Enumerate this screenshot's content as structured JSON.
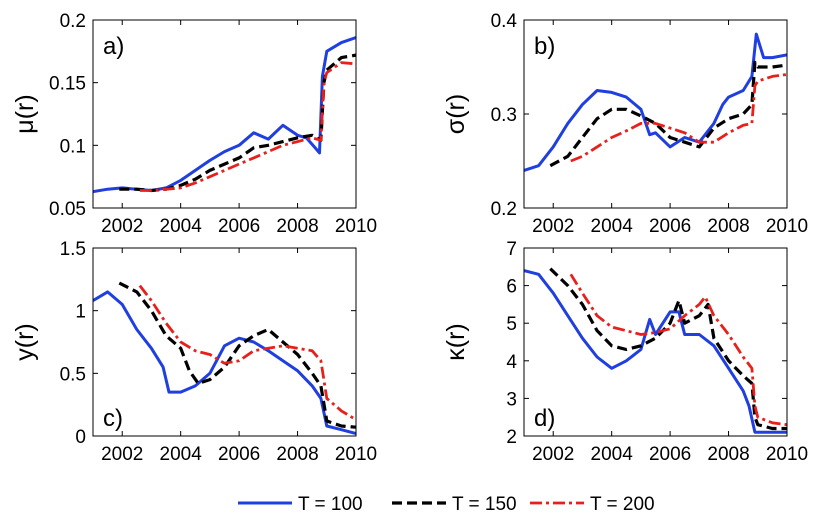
{
  "colors": {
    "T100": "#1f3fe0",
    "T150": "#000000",
    "T200": "#e8201c"
  },
  "legend": [
    {
      "label": "T = 100",
      "style": "solid"
    },
    {
      "label": "T = 150",
      "style": "dashed"
    },
    {
      "label": "T = 200",
      "style": "dashdot"
    }
  ],
  "chart_data": [
    {
      "type": "line",
      "panel": "a)",
      "ylabel": "μ(r)",
      "xlim": [
        2001,
        2010
      ],
      "ylim": [
        0.05,
        0.2
      ],
      "xticks": [
        "2002",
        "2004",
        "2006",
        "2008",
        "2010"
      ],
      "yticks": [
        "0.05",
        "0.1",
        "0.15",
        "0.2"
      ],
      "series": [
        {
          "name": "T = 100",
          "x": [
            2001,
            2001.5,
            2002,
            2002.5,
            2003,
            2003.5,
            2004,
            2004.5,
            2005,
            2005.5,
            2006,
            2006.5,
            2007,
            2007.5,
            2008,
            2008.3,
            2008.6,
            2008.75,
            2008.85,
            2009,
            2009.5,
            2010
          ],
          "y": [
            0.063,
            0.065,
            0.066,
            0.065,
            0.064,
            0.066,
            0.072,
            0.08,
            0.088,
            0.095,
            0.1,
            0.11,
            0.105,
            0.116,
            0.108,
            0.106,
            0.098,
            0.094,
            0.155,
            0.175,
            0.182,
            0.186
          ]
        },
        {
          "name": "T = 150",
          "x": [
            2001.9,
            2002.5,
            2003,
            2003.5,
            2004,
            2004.5,
            2005,
            2005.5,
            2006,
            2006.5,
            2007,
            2007.5,
            2008,
            2008.5,
            2008.8,
            2008.9,
            2009,
            2009.5,
            2010
          ],
          "y": [
            0.065,
            0.065,
            0.064,
            0.065,
            0.068,
            0.073,
            0.08,
            0.085,
            0.09,
            0.098,
            0.1,
            0.103,
            0.106,
            0.108,
            0.104,
            0.15,
            0.16,
            0.17,
            0.172
          ]
        },
        {
          "name": "T = 200",
          "x": [
            2002.6,
            2003,
            2003.5,
            2004,
            2004.5,
            2005,
            2005.5,
            2006,
            2006.5,
            2007,
            2007.5,
            2008,
            2008.5,
            2008.8,
            2008.9,
            2009,
            2009.5,
            2010
          ],
          "y": [
            0.064,
            0.064,
            0.065,
            0.066,
            0.07,
            0.075,
            0.08,
            0.085,
            0.09,
            0.095,
            0.1,
            0.103,
            0.106,
            0.104,
            0.15,
            0.158,
            0.166,
            0.165
          ]
        }
      ]
    },
    {
      "type": "line",
      "panel": "b)",
      "ylabel": "σ(r)",
      "xlim": [
        2001,
        2010
      ],
      "ylim": [
        0.2,
        0.4
      ],
      "xticks": [
        "2002",
        "2004",
        "2006",
        "2008",
        "2010"
      ],
      "yticks": [
        "0.2",
        "0.3",
        "0.4"
      ],
      "series": [
        {
          "name": "T = 100",
          "x": [
            2001,
            2001.5,
            2002,
            2002.5,
            2003,
            2003.5,
            2004,
            2004.5,
            2005,
            2005.3,
            2005.5,
            2006,
            2006.5,
            2007,
            2007.5,
            2007.8,
            2008,
            2008.5,
            2008.8,
            2008.95,
            2009.2,
            2009.5,
            2010
          ],
          "y": [
            0.24,
            0.245,
            0.265,
            0.29,
            0.31,
            0.325,
            0.323,
            0.318,
            0.305,
            0.278,
            0.28,
            0.265,
            0.275,
            0.27,
            0.29,
            0.31,
            0.318,
            0.325,
            0.34,
            0.385,
            0.36,
            0.36,
            0.363
          ]
        },
        {
          "name": "T = 150",
          "x": [
            2001.9,
            2002.5,
            2003,
            2003.5,
            2004,
            2004.5,
            2005,
            2005.5,
            2006,
            2006.5,
            2007,
            2007.5,
            2008,
            2008.5,
            2008.8,
            2008.9,
            2009,
            2009.5,
            2010
          ],
          "y": [
            0.245,
            0.255,
            0.275,
            0.295,
            0.305,
            0.305,
            0.298,
            0.29,
            0.275,
            0.27,
            0.265,
            0.285,
            0.295,
            0.3,
            0.31,
            0.355,
            0.35,
            0.35,
            0.352
          ]
        },
        {
          "name": "T = 200",
          "x": [
            2002.6,
            2003,
            2003.5,
            2004,
            2004.5,
            2005,
            2005.5,
            2006,
            2006.5,
            2007,
            2007.5,
            2008,
            2008.5,
            2008.8,
            2008.9,
            2009,
            2009.5,
            2010
          ],
          "y": [
            0.25,
            0.255,
            0.265,
            0.275,
            0.282,
            0.29,
            0.29,
            0.285,
            0.28,
            0.27,
            0.27,
            0.28,
            0.288,
            0.29,
            0.33,
            0.335,
            0.34,
            0.342
          ]
        }
      ]
    },
    {
      "type": "line",
      "panel": "c)",
      "ylabel": "y(r)",
      "xlim": [
        2001,
        2010
      ],
      "ylim": [
        0,
        1.5
      ],
      "xticks": [
        "2002",
        "2004",
        "2006",
        "2008",
        "2010"
      ],
      "yticks": [
        "0",
        "0.5",
        "1",
        "1.5"
      ],
      "series": [
        {
          "name": "T = 100",
          "x": [
            2001,
            2001.5,
            2002,
            2002.5,
            2003,
            2003.4,
            2003.6,
            2004,
            2004.5,
            2005,
            2005.5,
            2006,
            2006.5,
            2007,
            2007.5,
            2008,
            2008.5,
            2008.8,
            2009,
            2009.5,
            2010
          ],
          "y": [
            1.08,
            1.15,
            1.05,
            0.85,
            0.7,
            0.55,
            0.35,
            0.35,
            0.4,
            0.5,
            0.72,
            0.78,
            0.75,
            0.68,
            0.6,
            0.52,
            0.4,
            0.3,
            0.08,
            0.05,
            0.02
          ]
        },
        {
          "name": "T = 150",
          "x": [
            2001.9,
            2002.5,
            2003,
            2003.5,
            2004,
            2004.3,
            2004.6,
            2005,
            2005.5,
            2006,
            2006.5,
            2007,
            2007.5,
            2008,
            2008.5,
            2008.8,
            2009,
            2009.5,
            2010
          ],
          "y": [
            1.22,
            1.15,
            1.0,
            0.8,
            0.7,
            0.52,
            0.42,
            0.45,
            0.55,
            0.72,
            0.8,
            0.85,
            0.75,
            0.65,
            0.5,
            0.4,
            0.12,
            0.08,
            0.07
          ]
        },
        {
          "name": "T = 200",
          "x": [
            2002.6,
            2003,
            2003.5,
            2004,
            2004.5,
            2005,
            2005.5,
            2006,
            2006.5,
            2007,
            2007.5,
            2008,
            2008.5,
            2008.8,
            2009,
            2009.5,
            2010
          ],
          "y": [
            1.2,
            1.08,
            0.9,
            0.75,
            0.68,
            0.65,
            0.58,
            0.6,
            0.68,
            0.7,
            0.72,
            0.7,
            0.68,
            0.6,
            0.3,
            0.2,
            0.13
          ]
        }
      ]
    },
    {
      "type": "line",
      "panel": "d)",
      "ylabel": "κ(r)",
      "xlim": [
        2001,
        2010
      ],
      "ylim": [
        2,
        7
      ],
      "xticks": [
        "2002",
        "2004",
        "2006",
        "2008",
        "2010"
      ],
      "yticks": [
        "2",
        "3",
        "4",
        "5",
        "6",
        "7"
      ],
      "series": [
        {
          "name": "T = 100",
          "x": [
            2001,
            2001.5,
            2002,
            2002.5,
            2003,
            2003.5,
            2004,
            2004.5,
            2005,
            2005.3,
            2005.5,
            2006,
            2006.3,
            2006.5,
            2007,
            2007.5,
            2008,
            2008.5,
            2008.7,
            2008.9,
            2009,
            2009.5,
            2010
          ],
          "y": [
            6.4,
            6.3,
            5.8,
            5.2,
            4.6,
            4.1,
            3.8,
            4.0,
            4.3,
            5.1,
            4.7,
            5.3,
            5.3,
            4.7,
            4.7,
            4.4,
            3.8,
            3.2,
            2.8,
            2.1,
            2.1,
            2.1,
            2.1
          ]
        },
        {
          "name": "T = 150",
          "x": [
            2001.9,
            2002.5,
            2003,
            2003.5,
            2004,
            2004.5,
            2005,
            2005.5,
            2006,
            2006.3,
            2006.5,
            2007,
            2007.3,
            2007.5,
            2008,
            2008.5,
            2008.8,
            2008.9,
            2009,
            2009.5,
            2010
          ],
          "y": [
            6.45,
            6.0,
            5.5,
            4.8,
            4.4,
            4.3,
            4.4,
            4.6,
            5.0,
            5.6,
            5.0,
            5.2,
            5.5,
            4.6,
            4.0,
            3.6,
            3.4,
            2.5,
            2.3,
            2.2,
            2.2
          ]
        },
        {
          "name": "T = 200",
          "x": [
            2002.6,
            2003,
            2003.5,
            2004,
            2004.5,
            2005,
            2005.5,
            2006,
            2006.5,
            2007,
            2007.2,
            2007.5,
            2008,
            2008.5,
            2008.8,
            2008.9,
            2009,
            2009.5,
            2010
          ],
          "y": [
            6.3,
            5.8,
            5.2,
            4.9,
            4.8,
            4.7,
            4.75,
            4.85,
            5.2,
            5.5,
            5.7,
            5.2,
            4.7,
            4.1,
            3.8,
            2.8,
            2.5,
            2.35,
            2.3
          ]
        }
      ]
    }
  ]
}
